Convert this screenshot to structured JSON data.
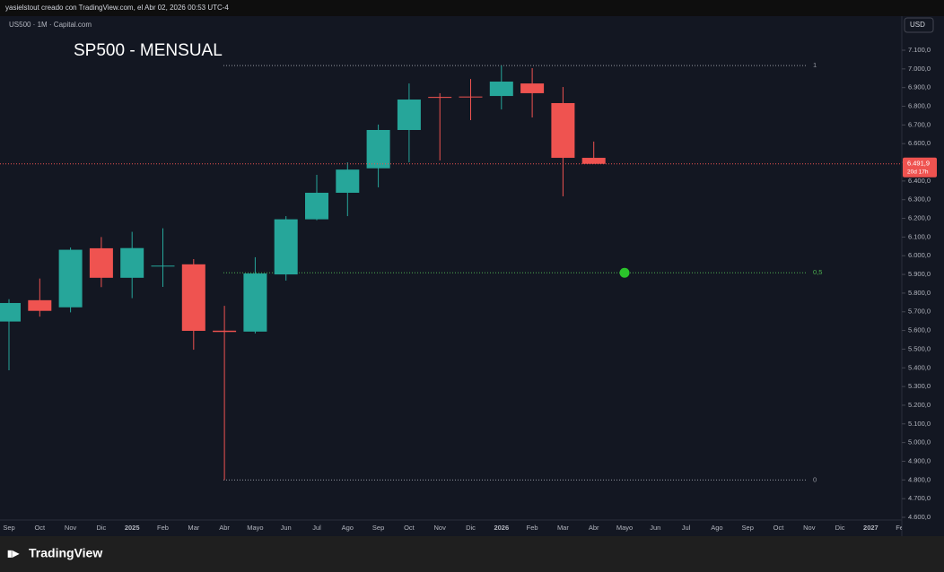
{
  "header": {
    "credit": "yasielstout creado con TradingView.com, el Abr 02, 2026 00:53 UTC-4"
  },
  "chart_data": {
    "type": "candlestick",
    "symbol": "US500 · 1M · Capital.com",
    "title": "SP500 - MENSUAL",
    "currency": "USD",
    "categories": [
      "Sep",
      "Oct",
      "Nov",
      "Dic",
      "2025",
      "Feb",
      "Mar",
      "Abr",
      "Mayo",
      "Jun",
      "Jul",
      "Ago",
      "Sep",
      "Oct",
      "Nov",
      "Dic",
      "2026",
      "Feb",
      "Mar",
      "Abr",
      "Mayo",
      "Jun",
      "Jul",
      "Ago",
      "Sep",
      "Oct",
      "Nov",
      "Dic",
      "2027",
      "Feb"
    ],
    "open": [
      5648,
      5762,
      5724,
      6040,
      5882,
      5943,
      5954,
      5599,
      5594,
      5900,
      6195,
      6337,
      6468,
      6673,
      6850,
      6852,
      6855,
      6922,
      6817,
      6524,
      null,
      null,
      null,
      null,
      null,
      null,
      null,
      null,
      null,
      null
    ],
    "high": [
      5767,
      5878,
      6044,
      6100,
      6128,
      6147,
      5982,
      5732,
      5992,
      6212,
      6433,
      6500,
      6702,
      6922,
      6870,
      6946,
      7018,
      7004,
      6903,
      6611,
      null,
      null,
      null,
      null,
      null,
      null,
      null,
      null,
      null,
      null
    ],
    "low": [
      5387,
      5674,
      5697,
      5832,
      5773,
      5833,
      5497,
      4800,
      5584,
      5867,
      6190,
      6212,
      6366,
      6500,
      6510,
      6726,
      6783,
      6740,
      6318,
      6491.9,
      null,
      null,
      null,
      null,
      null,
      null,
      null,
      null,
      null,
      null
    ],
    "close": [
      5747,
      5705,
      6032,
      5882,
      6041,
      5947,
      5598,
      5592,
      5905,
      6195,
      6337,
      6461,
      6673,
      6836,
      6845,
      6848,
      6932,
      6870,
      6524,
      6491.9,
      null,
      null,
      null,
      null,
      null,
      null,
      null,
      null,
      null,
      null
    ],
    "marker": [
      null,
      null,
      null,
      null,
      null,
      null,
      null,
      null,
      null,
      null,
      null,
      null,
      null,
      null,
      null,
      null,
      null,
      null,
      null,
      null,
      5909,
      null,
      null,
      null,
      null,
      null,
      null,
      null,
      null,
      null
    ],
    "up_color": "#26a69a",
    "down_color": "#ef5350",
    "marker_color": "#2bc42b",
    "fib_levels": [
      {
        "label": "1",
        "price": 7018
      },
      {
        "label": "0,5",
        "price": 5909
      },
      {
        "label": "0",
        "price": 4800
      }
    ],
    "last_price": {
      "value": 6491.9,
      "label": "6.491,9"
    },
    "countdown": "20d 17h",
    "ylim": [
      4600,
      7100
    ],
    "yticks": [
      {
        "value": 4600,
        "label": "4.600,0"
      },
      {
        "value": 4700,
        "label": "4.700,0"
      },
      {
        "value": 4800,
        "label": "4.800,0"
      },
      {
        "value": 4900,
        "label": "4.900,0"
      },
      {
        "value": 5000,
        "label": "5.000,0"
      },
      {
        "value": 5100,
        "label": "5.100,0"
      },
      {
        "value": 5200,
        "label": "5.200,0"
      },
      {
        "value": 5300,
        "label": "5.300,0"
      },
      {
        "value": 5400,
        "label": "5.400,0"
      },
      {
        "value": 5500,
        "label": "5.500,0"
      },
      {
        "value": 5600,
        "label": "5.600,0"
      },
      {
        "value": 5700,
        "label": "5.700,0"
      },
      {
        "value": 5800,
        "label": "5.800,0"
      },
      {
        "value": 5900,
        "label": "5.900,0"
      },
      {
        "value": 6000,
        "label": "6.000,0"
      },
      {
        "value": 6100,
        "label": "6.100,0"
      },
      {
        "value": 6200,
        "label": "6.200,0"
      },
      {
        "value": 6300,
        "label": "6.300,0"
      },
      {
        "value": 6400,
        "label": "6.400,0"
      },
      {
        "value": 6500,
        "label": "6.500,0"
      },
      {
        "value": 6600,
        "label": "6.600,0"
      },
      {
        "value": 6700,
        "label": "6.700,0"
      },
      {
        "value": 6800,
        "label": "6.800,0"
      },
      {
        "value": 6900,
        "label": "6.900,0"
      },
      {
        "value": 7000,
        "label": "7.000,0"
      },
      {
        "value": 7100,
        "label": "7.100,0"
      }
    ]
  },
  "footer": {
    "brand": "TradingView"
  }
}
